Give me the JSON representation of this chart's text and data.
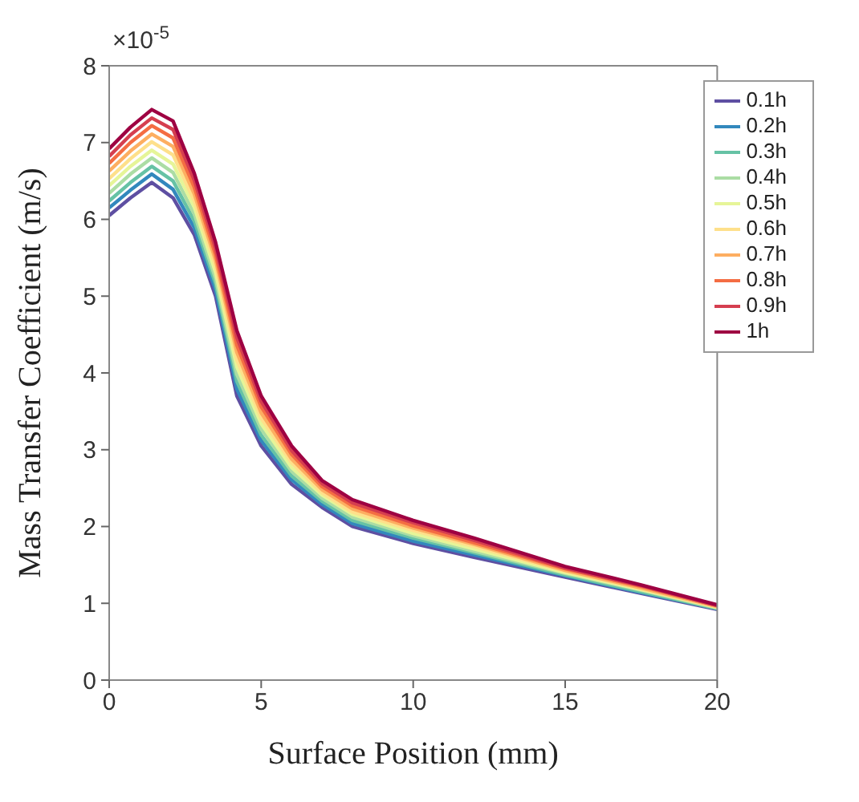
{
  "chart_data": {
    "type": "line",
    "xlabel": "Surface Position (mm)",
    "ylabel": "Mass Transfer Coefficient (m/s)",
    "annotations": [
      "×10$^{-5}$"
    ],
    "x": [
      0,
      0.7,
      1.4,
      2.1,
      2.8,
      3.5,
      4.2,
      5,
      6,
      7,
      8,
      10,
      12,
      15,
      17.5,
      20
    ],
    "xlim": [
      0,
      20
    ],
    "xticks": [
      0,
      5,
      10,
      15,
      20
    ],
    "ylim": [
      0,
      8
    ],
    "yticks": [
      0,
      1,
      2,
      3,
      4,
      5,
      6,
      7,
      8
    ],
    "grid": false,
    "legend": "top right",
    "marker": "none",
    "line_style": "solid",
    "series": [
      {
        "name": "0.1h",
        "color": "#5e4fa2",
        "values": [
          6.05,
          6.28,
          6.48,
          6.28,
          5.8,
          5.0,
          3.7,
          3.05,
          2.55,
          2.25,
          2.0,
          1.78,
          1.6,
          1.34,
          1.13,
          0.92
        ]
      },
      {
        "name": "0.2h",
        "color": "#3288bd",
        "values": [
          6.15,
          6.38,
          6.59,
          6.39,
          5.89,
          5.08,
          3.79,
          3.12,
          2.61,
          2.29,
          2.04,
          1.81,
          1.63,
          1.36,
          1.14,
          0.93
        ]
      },
      {
        "name": "0.3h",
        "color": "#66c2a5",
        "values": [
          6.24,
          6.48,
          6.69,
          6.5,
          5.98,
          5.16,
          3.89,
          3.19,
          2.66,
          2.33,
          2.08,
          1.85,
          1.66,
          1.37,
          1.15,
          0.93
        ]
      },
      {
        "name": "0.4h",
        "color": "#abdda4",
        "values": [
          6.34,
          6.59,
          6.8,
          6.61,
          6.07,
          5.23,
          3.98,
          3.27,
          2.72,
          2.37,
          2.12,
          1.88,
          1.68,
          1.39,
          1.17,
          0.94
        ]
      },
      {
        "name": "0.5h",
        "color": "#e6f598",
        "values": [
          6.44,
          6.69,
          6.9,
          6.72,
          6.16,
          5.31,
          4.08,
          3.34,
          2.77,
          2.41,
          2.16,
          1.91,
          1.71,
          1.4,
          1.18,
          0.95
        ]
      },
      {
        "name": "0.6h",
        "color": "#fee08b",
        "values": [
          6.53,
          6.79,
          7.01,
          6.84,
          6.24,
          5.39,
          4.17,
          3.41,
          2.83,
          2.44,
          2.19,
          1.95,
          1.74,
          1.42,
          1.19,
          0.95
        ]
      },
      {
        "name": "0.7h",
        "color": "#fdae61",
        "values": [
          6.63,
          6.89,
          7.11,
          6.95,
          6.33,
          5.47,
          4.27,
          3.48,
          2.88,
          2.48,
          2.23,
          1.98,
          1.77,
          1.43,
          1.2,
          0.96
        ]
      },
      {
        "name": "0.8h",
        "color": "#f46d43",
        "values": [
          6.73,
          7.0,
          7.22,
          7.06,
          6.42,
          5.54,
          4.36,
          3.56,
          2.94,
          2.52,
          2.27,
          2.01,
          1.79,
          1.45,
          1.22,
          0.97
        ]
      },
      {
        "name": "0.9h",
        "color": "#d53e4f",
        "values": [
          6.82,
          7.1,
          7.32,
          7.17,
          6.51,
          5.62,
          4.46,
          3.63,
          2.99,
          2.56,
          2.31,
          2.05,
          1.82,
          1.46,
          1.23,
          0.97
        ]
      },
      {
        "name": "1h",
        "color": "#9e0142",
        "values": [
          6.92,
          7.2,
          7.43,
          7.28,
          6.6,
          5.7,
          4.55,
          3.7,
          3.05,
          2.6,
          2.35,
          2.08,
          1.85,
          1.48,
          1.24,
          0.98
        ]
      }
    ]
  }
}
